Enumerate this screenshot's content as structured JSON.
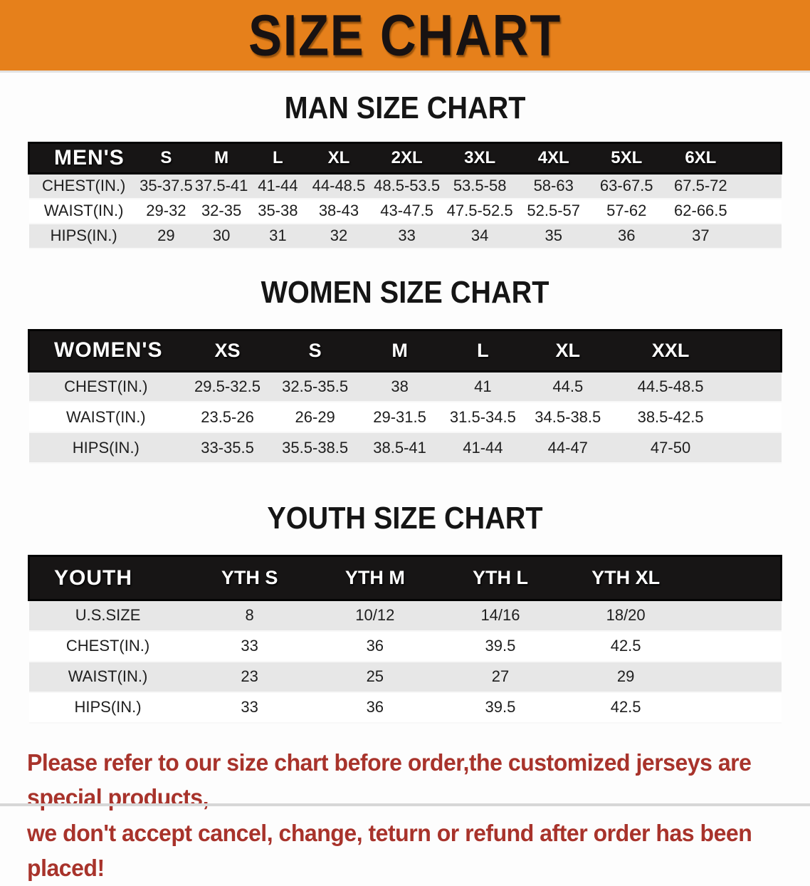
{
  "banner": {
    "title": "SIZE CHART",
    "bg_color": "#E6801B",
    "text_color": "#181212"
  },
  "sections": [
    {
      "heading": "MAN SIZE CHART",
      "label_header": "MEN'S",
      "columns": [
        "S",
        "M",
        "L",
        "XL",
        "2XL",
        "3XL",
        "4XL",
        "5XL",
        "6XL"
      ],
      "rows": [
        {
          "label": "CHEST(IN.)",
          "values": [
            "35-37.5",
            "37.5-41",
            "41-44",
            "44-48.5",
            "48.5-53.5",
            "53.5-58",
            "58-63",
            "63-67.5",
            "67.5-72"
          ]
        },
        {
          "label": "WAIST(IN.)",
          "values": [
            "29-32",
            "32-35",
            "35-38",
            "38-43",
            "43-47.5",
            "47.5-52.5",
            "52.5-57",
            "57-62",
            "62-66.5"
          ]
        },
        {
          "label": "HIPS(IN.)",
          "values": [
            "29",
            "30",
            "31",
            "32",
            "33",
            "34",
            "35",
            "36",
            "37"
          ]
        }
      ]
    },
    {
      "heading": "WOMEN SIZE CHART",
      "label_header": "WOMEN'S",
      "columns": [
        "XS",
        "S",
        "M",
        "L",
        "XL",
        "XXL"
      ],
      "rows": [
        {
          "label": "CHEST(IN.)",
          "values": [
            "29.5-32.5",
            "32.5-35.5",
            "38",
            "41",
            "44.5",
            "44.5-48.5"
          ]
        },
        {
          "label": "WAIST(IN.)",
          "values": [
            "23.5-26",
            "26-29",
            "29-31.5",
            "31.5-34.5",
            "34.5-38.5",
            "38.5-42.5"
          ]
        },
        {
          "label": "HIPS(IN.)",
          "values": [
            "33-35.5",
            "35.5-38.5",
            "38.5-41",
            "41-44",
            "44-47",
            "47-50"
          ]
        }
      ]
    },
    {
      "heading": "YOUTH SIZE CHART",
      "label_header": "YOUTH",
      "columns": [
        "YTH S",
        "YTH M",
        "YTH L",
        "YTH XL"
      ],
      "rows": [
        {
          "label": "U.S.SIZE",
          "values": [
            "8",
            "10/12",
            "14/16",
            "18/20"
          ]
        },
        {
          "label": "CHEST(IN.)",
          "values": [
            "33",
            "36",
            "39.5",
            "42.5"
          ]
        },
        {
          "label": "WAIST(IN.)",
          "values": [
            "23",
            "25",
            "27",
            "29"
          ]
        },
        {
          "label": "HIPS(IN.)",
          "values": [
            "33",
            "36",
            "39.5",
            "42.5"
          ]
        }
      ]
    }
  ],
  "disclaimer": {
    "line1": "Please refer to our size chart before order,the customized jerseys are special products,",
    "line2": "we don't accept cancel, change, teturn or refund after order has been placed!",
    "color": "#A8332B"
  },
  "colors": {
    "banner_bg": "#E6801B",
    "header_band": "#171515",
    "row_alt": "#E7E7E7",
    "disclaimer_red": "#A8332B"
  }
}
